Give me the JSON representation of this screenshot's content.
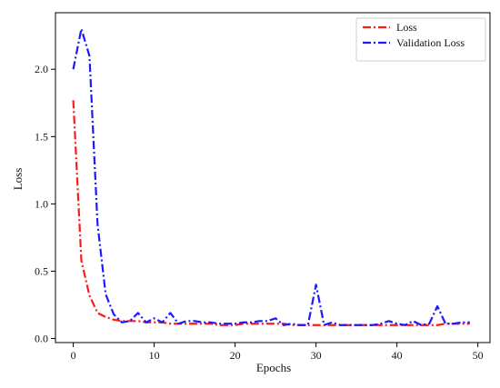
{
  "chart_data": {
    "type": "line",
    "title": "",
    "xlabel": "Epochs",
    "ylabel": "Loss",
    "xlim": [
      -2.2,
      51.5
    ],
    "ylim": [
      -0.03,
      2.42
    ],
    "xticks": [
      0,
      10,
      20,
      30,
      40,
      50
    ],
    "xtick_labels": [
      "0",
      "10",
      "20",
      "30",
      "40",
      "50"
    ],
    "yticks": [
      0.0,
      0.5,
      1.0,
      1.5,
      2.0
    ],
    "ytick_labels": [
      "0.0",
      "0.5",
      "1.0",
      "1.5",
      "2.0"
    ],
    "grid": false,
    "legend_position": "top-right",
    "x": [
      0,
      1,
      2,
      3,
      4,
      5,
      6,
      7,
      8,
      9,
      10,
      11,
      12,
      13,
      14,
      15,
      16,
      17,
      18,
      19,
      20,
      21,
      22,
      23,
      24,
      25,
      26,
      27,
      28,
      29,
      30,
      31,
      32,
      33,
      34,
      35,
      36,
      37,
      38,
      39,
      40,
      41,
      42,
      43,
      44,
      45,
      46,
      47,
      48,
      49
    ],
    "series": [
      {
        "name": "Loss",
        "color": "#ff1a1a",
        "dash": "dash-dot",
        "values": [
          1.77,
          0.58,
          0.32,
          0.19,
          0.16,
          0.14,
          0.13,
          0.13,
          0.13,
          0.12,
          0.12,
          0.12,
          0.11,
          0.11,
          0.11,
          0.11,
          0.11,
          0.11,
          0.1,
          0.1,
          0.1,
          0.11,
          0.11,
          0.11,
          0.11,
          0.11,
          0.11,
          0.1,
          0.1,
          0.1,
          0.1,
          0.1,
          0.1,
          0.1,
          0.1,
          0.1,
          0.1,
          0.1,
          0.1,
          0.1,
          0.1,
          0.1,
          0.1,
          0.1,
          0.1,
          0.1,
          0.11,
          0.11,
          0.11,
          0.11
        ]
      },
      {
        "name": "Validation Loss",
        "color": "#1a1aff",
        "dash": "dash-dot",
        "values": [
          2.0,
          2.3,
          2.1,
          0.85,
          0.33,
          0.18,
          0.12,
          0.13,
          0.19,
          0.12,
          0.15,
          0.12,
          0.19,
          0.11,
          0.13,
          0.13,
          0.12,
          0.12,
          0.11,
          0.11,
          0.11,
          0.12,
          0.12,
          0.13,
          0.13,
          0.15,
          0.1,
          0.11,
          0.1,
          0.1,
          0.4,
          0.1,
          0.12,
          0.1,
          0.1,
          0.1,
          0.1,
          0.1,
          0.11,
          0.13,
          0.11,
          0.1,
          0.13,
          0.1,
          0.11,
          0.24,
          0.11,
          0.11,
          0.12,
          0.12
        ]
      }
    ]
  }
}
